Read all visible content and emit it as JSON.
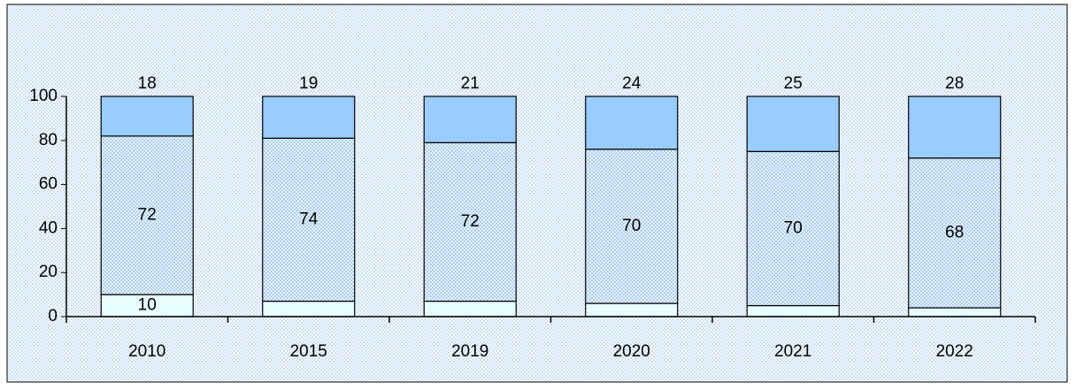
{
  "chart_data": {
    "type": "bar",
    "stacked": true,
    "categories": [
      "2010",
      "2015",
      "2019",
      "2020",
      "2021",
      "2022"
    ],
    "series": [
      {
        "color": "#e8ffff",
        "values": [
          10,
          7,
          7,
          6,
          5,
          4
        ]
      },
      {
        "color": "#c4dcf4",
        "pattern": true,
        "values": [
          72,
          74,
          72,
          70,
          70,
          68
        ]
      },
      {
        "color": "#99ccff",
        "values": [
          18,
          19,
          21,
          24,
          25,
          28
        ]
      }
    ],
    "ylim": [
      0,
      100
    ],
    "yticks": [
      0,
      20,
      40,
      60,
      80,
      100
    ],
    "grid": false
  }
}
